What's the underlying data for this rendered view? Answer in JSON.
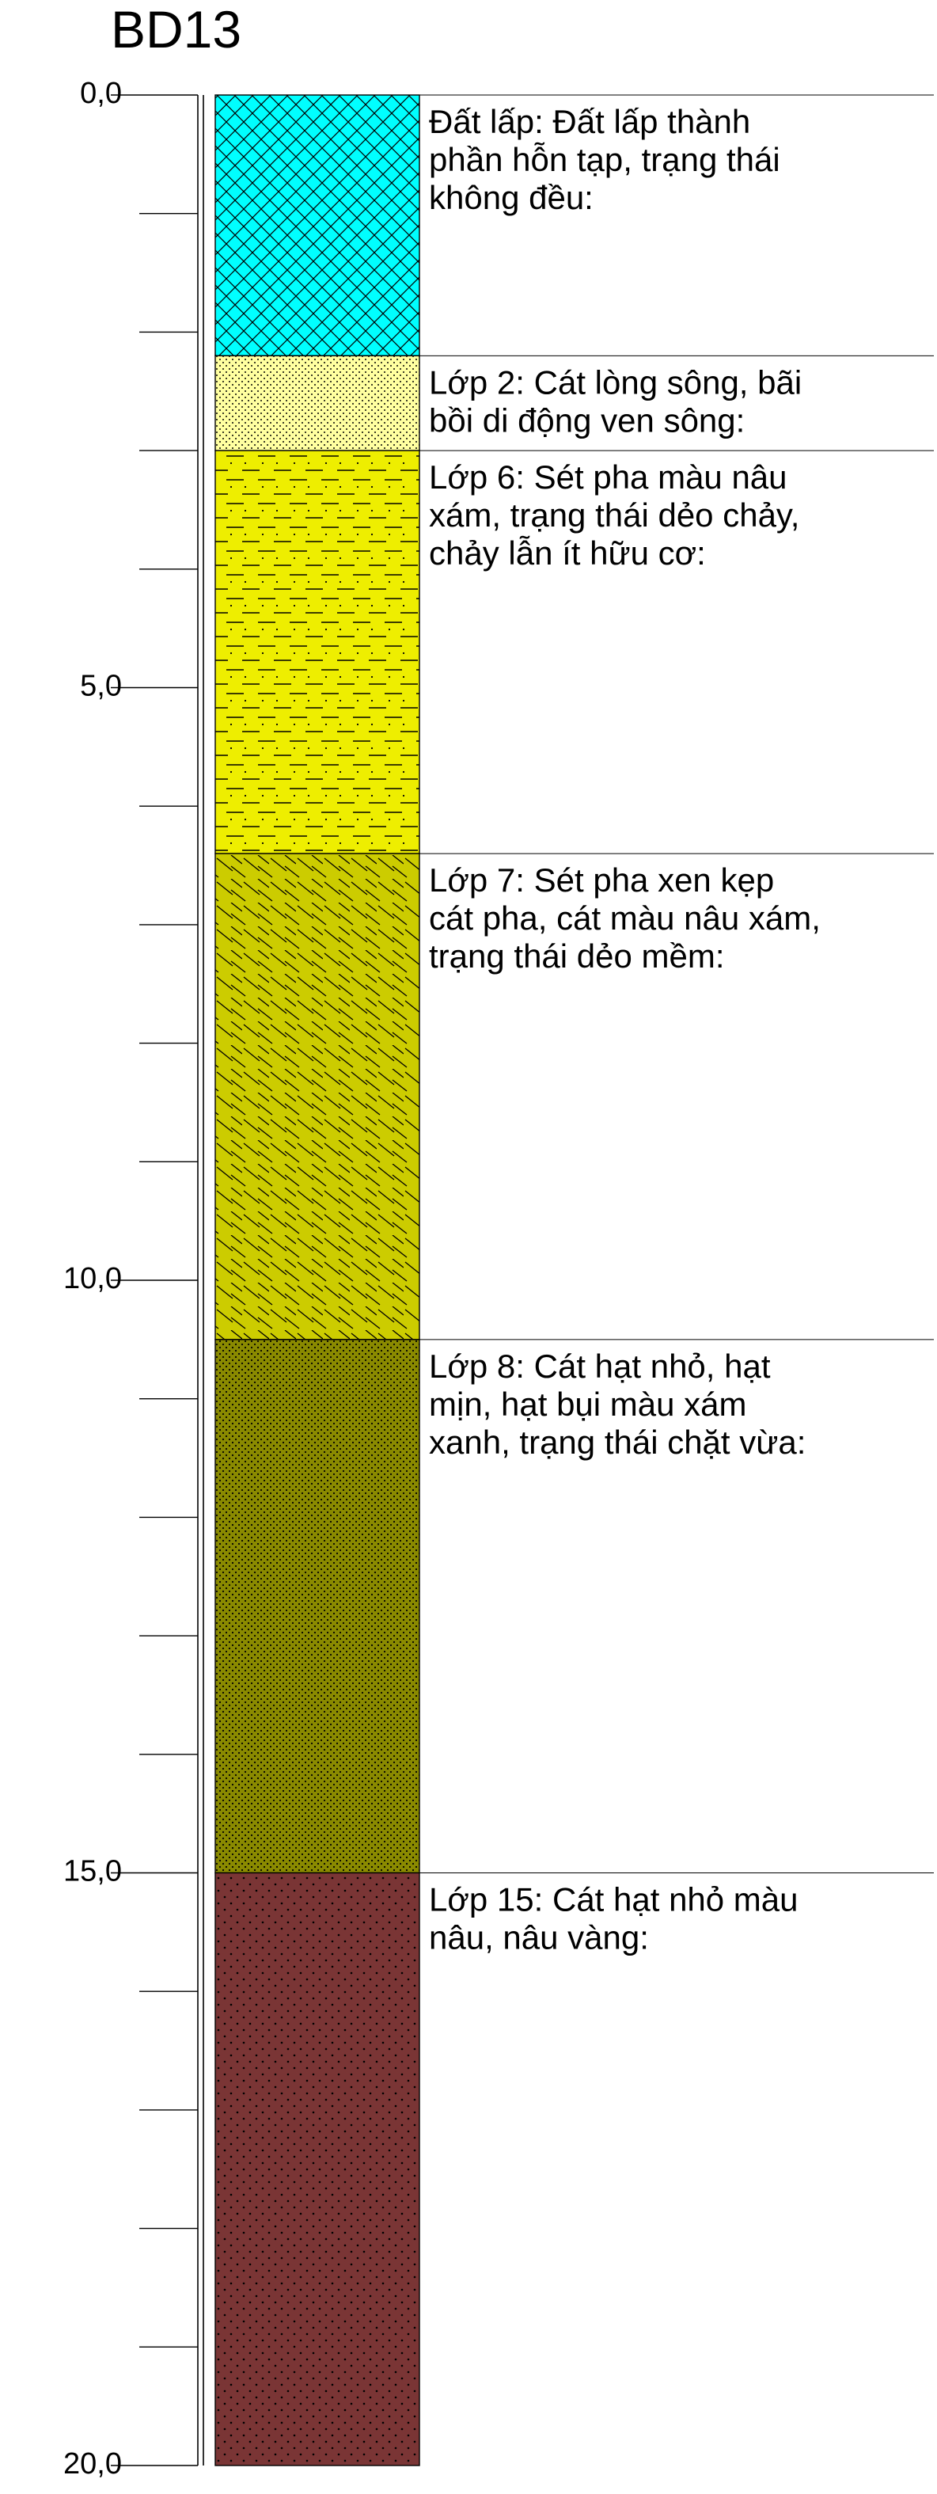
{
  "title": "BD13",
  "depth_axis": {
    "min": 0,
    "max": 20,
    "major_step": 5,
    "minor_step": 1,
    "tick_labels": [
      {
        "value": 0,
        "label": "0,0"
      },
      {
        "value": 5,
        "label": "5,0"
      },
      {
        "value": 10,
        "label": "10,0"
      },
      {
        "value": 15,
        "label": "15,0"
      },
      {
        "value": 20,
        "label": "20,0"
      }
    ]
  },
  "layers": [
    {
      "top": 0,
      "bottom": 2.2,
      "color": "#00FFFF",
      "pattern": "crosshatch",
      "description_lines": [
        "Đất lấp: Đất lấp thành",
        "phần hỗn tạp, trạng thái",
        "không đều:"
      ]
    },
    {
      "top": 2.2,
      "bottom": 3.0,
      "color": "#FFFFA0",
      "pattern": "fine-dots",
      "description_lines": [
        "Lớp 2: Cát lòng sông, bãi",
        "bồi di động ven sông:"
      ]
    },
    {
      "top": 3.0,
      "bottom": 6.4,
      "color": "#EEEE00",
      "pattern": "dash-dot",
      "description_lines": [
        "Lớp 6: Sét pha màu nâu",
        "xám, trạng thái dẻo chảy,",
        "chảy lẫn ít hữu cơ:"
      ]
    },
    {
      "top": 6.4,
      "bottom": 10.5,
      "color": "#CCCC00",
      "pattern": "diagonal-dash",
      "description_lines": [
        "Lớp 7: Sét pha xen kẹp",
        "cát pha, cát màu nâu xám,",
        "trạng thái dẻo mềm:"
      ]
    },
    {
      "top": 10.5,
      "bottom": 15.0,
      "color": "#8A8A00",
      "pattern": "dense-dots",
      "description_lines": [
        "Lớp 8: Cát hạt nhỏ, hạt",
        "mịn, hạt bụi màu xám",
        "xanh, trạng thái chặt vừa:"
      ]
    },
    {
      "top": 15.0,
      "bottom": 20.0,
      "color": "#7A3535",
      "pattern": "sparse-dots",
      "description_lines": [
        "Lớp 15: Cát hạt nhỏ màu",
        "nâu, nâu vàng:"
      ]
    }
  ]
}
